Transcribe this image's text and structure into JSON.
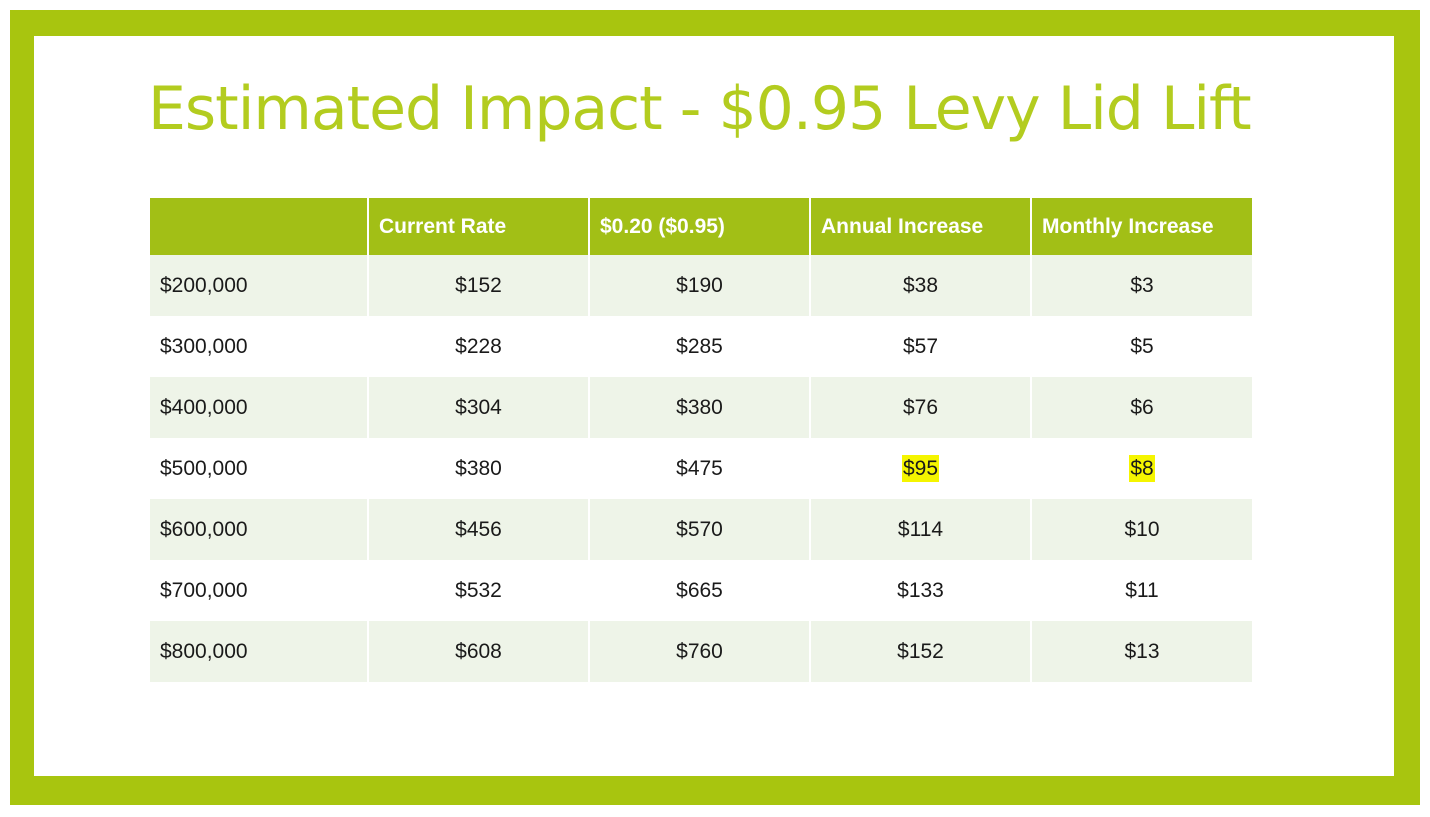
{
  "title": "Estimated Impact - $0.95 Levy  Lid Lift",
  "colors": {
    "frame": "#a8c50f",
    "title": "#b3cc1f",
    "header": "#a2bf16",
    "row_band": "#eef4e8",
    "highlight": "#f5f500"
  },
  "table": {
    "headers": [
      "",
      "Current Rate",
      "$0.20 ($0.95)",
      "Annual Increase",
      "Monthly Increase"
    ],
    "rows": [
      [
        "$200,000",
        "$152",
        "$190",
        "$38",
        "$3"
      ],
      [
        "$300,000",
        "$228",
        "$285",
        "$57",
        "$5"
      ],
      [
        "$400,000",
        "$304",
        "$380",
        "$76",
        "$6"
      ],
      [
        "$500,000",
        "$380",
        "$475",
        "$95",
        "$8"
      ],
      [
        "$600,000",
        "$456",
        "$570",
        "$114",
        "$10"
      ],
      [
        "$700,000",
        "$532",
        "$665",
        "$133",
        "$11"
      ],
      [
        "$800,000",
        "$608",
        "$760",
        "$152",
        "$13"
      ]
    ]
  }
}
